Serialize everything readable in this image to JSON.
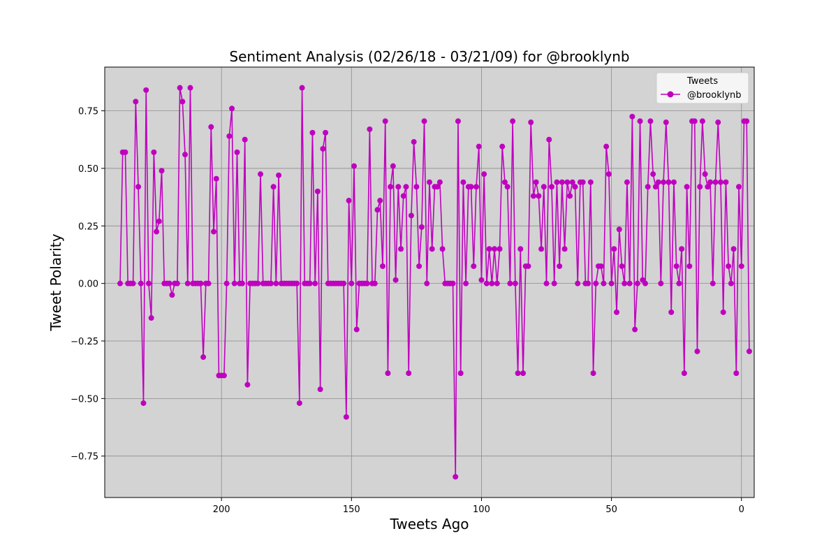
{
  "chart_data": {
    "type": "line",
    "title": "Sentiment Analysis (02/26/18 - 03/21/09) for @brooklynb",
    "xlabel": "Tweets Ago",
    "ylabel": "Tweet Polarity",
    "xlim": [
      244.9,
      -4.9
    ],
    "ylim": [
      -0.93,
      0.94
    ],
    "x_ticks": [
      200,
      150,
      100,
      50,
      0
    ],
    "y_ticks": [
      -0.75,
      -0.5,
      -0.25,
      0.0,
      0.25,
      0.5,
      0.75
    ],
    "x_tick_labels": [
      "200",
      "150",
      "100",
      "50",
      "0"
    ],
    "y_tick_labels": [
      "−0.75",
      "−0.50",
      "−0.25",
      "0.00",
      "0.25",
      "0.50",
      "0.75"
    ],
    "grid": true,
    "legend": {
      "title": "Tweets",
      "placement": "top-right"
    },
    "series": [
      {
        "name": "@brooklynb",
        "color": "#bf00bf",
        "x_start": 239,
        "x_step": -1,
        "values": [
          0.0,
          0.57,
          0.57,
          0.0,
          0.0,
          0.0,
          0.79,
          0.42,
          0.0,
          -0.52,
          0.84,
          0.0,
          -0.15,
          0.57,
          0.225,
          0.27,
          0.49,
          0.0,
          0.0,
          0.0,
          -0.05,
          0.0,
          0.0,
          0.85,
          0.79,
          0.56,
          0.0,
          0.85,
          0.0,
          0.0,
          0.0,
          0.0,
          -0.32,
          0.0,
          0.0,
          0.68,
          0.225,
          0.455,
          -0.4,
          -0.4,
          -0.4,
          0.0,
          0.64,
          0.76,
          0.0,
          0.57,
          0.0,
          0.0,
          0.625,
          -0.44,
          0.0,
          0.0,
          0.0,
          0.0,
          0.475,
          0.0,
          0.0,
          0.0,
          0.0,
          0.42,
          0.0,
          0.47,
          0.0,
          0.0,
          0.0,
          0.0,
          0.0,
          0.0,
          0.0,
          -0.52,
          0.85,
          0.0,
          0.0,
          0.0,
          0.655,
          0.0,
          0.4,
          -0.46,
          0.585,
          0.655,
          0.0,
          0.0,
          0.0,
          0.0,
          0.0,
          0.0,
          0.0,
          -0.58,
          0.36,
          0.0,
          0.51,
          -0.2,
          0.0,
          0.0,
          0.0,
          0.0,
          0.67,
          0.0,
          0.0,
          0.32,
          0.36,
          0.075,
          0.705,
          -0.39,
          0.42,
          0.51,
          0.015,
          0.42,
          0.15,
          0.38,
          0.42,
          -0.39,
          0.295,
          0.615,
          0.42,
          0.075,
          0.245,
          0.705,
          0.0,
          0.44,
          0.15,
          0.42,
          0.42,
          0.44,
          0.15,
          0.0,
          0.0,
          0.0,
          0.0,
          -0.84,
          0.705,
          -0.39,
          0.44,
          0.0,
          0.42,
          0.42,
          0.075,
          0.42,
          0.595,
          0.015,
          0.475,
          0.0,
          0.15,
          0.0,
          0.15,
          0.0,
          0.15,
          0.595,
          0.44,
          0.42,
          0.0,
          0.705,
          0.0,
          -0.39,
          0.15,
          -0.39,
          0.075,
          0.075,
          0.7,
          0.38,
          0.44,
          0.38,
          0.15,
          0.42,
          0.0,
          0.625,
          0.42,
          0.0,
          0.44,
          0.075,
          0.44,
          0.15,
          0.44,
          0.38,
          0.44,
          0.42,
          0.0,
          0.44,
          0.44,
          0.0,
          0.0,
          0.44,
          -0.39,
          0.0,
          0.075,
          0.075,
          0.0,
          0.595,
          0.475,
          0.0,
          0.15,
          -0.125,
          0.235,
          0.075,
          0.0,
          0.44,
          0.0,
          0.725,
          -0.2,
          0.0,
          0.705,
          0.015,
          0.0,
          0.42,
          0.705,
          0.475,
          0.42,
          0.44,
          0.0,
          0.44,
          0.7,
          0.44,
          -0.125,
          0.44,
          0.075,
          0.0,
          0.15,
          -0.39,
          0.42,
          0.075,
          0.705,
          0.705,
          -0.295,
          0.42,
          0.705,
          0.475,
          0.42,
          0.44,
          0.0,
          0.44,
          0.7,
          0.44,
          -0.125,
          0.44,
          0.075,
          0.0,
          0.15,
          -0.39,
          0.42,
          0.075,
          0.705,
          0.705,
          -0.295
        ]
      }
    ]
  }
}
